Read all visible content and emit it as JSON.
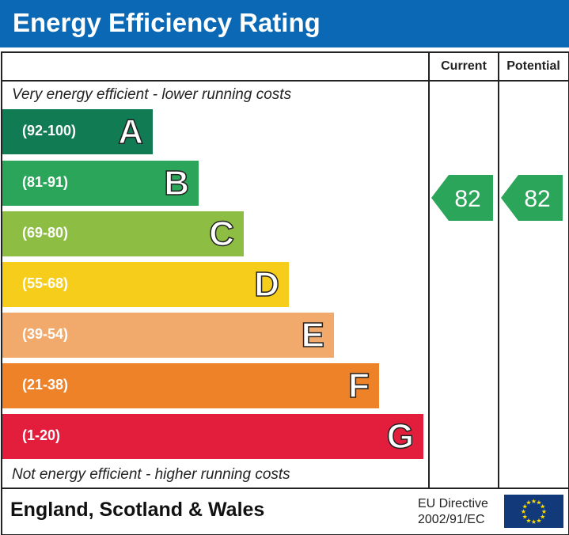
{
  "title": "Energy Efficiency Rating",
  "columns": {
    "current": "Current",
    "potential": "Potential"
  },
  "top_note": "Very energy efficient - lower running costs",
  "bottom_note": "Not energy efficient - higher running costs",
  "footer": {
    "region": "England, Scotland & Wales",
    "directive_line1": "EU Directive",
    "directive_line2": "2002/91/EC",
    "flag_icon": "eu-flag-icon"
  },
  "chart_data": {
    "type": "bar",
    "bands": [
      {
        "letter": "A",
        "range": "(92-100)",
        "color": "#117b54"
      },
      {
        "letter": "B",
        "range": "(81-91)",
        "color": "#2ba55a"
      },
      {
        "letter": "C",
        "range": "(69-80)",
        "color": "#8dbd43"
      },
      {
        "letter": "D",
        "range": "(55-68)",
        "color": "#f7cd1b"
      },
      {
        "letter": "E",
        "range": "(39-54)",
        "color": "#f2aa6c"
      },
      {
        "letter": "F",
        "range": "(21-38)",
        "color": "#ee8229"
      },
      {
        "letter": "G",
        "range": "(1-20)",
        "color": "#e31d3c"
      }
    ],
    "current": {
      "value": "82",
      "band": "B"
    },
    "potential": {
      "value": "82",
      "band": "B"
    }
  }
}
